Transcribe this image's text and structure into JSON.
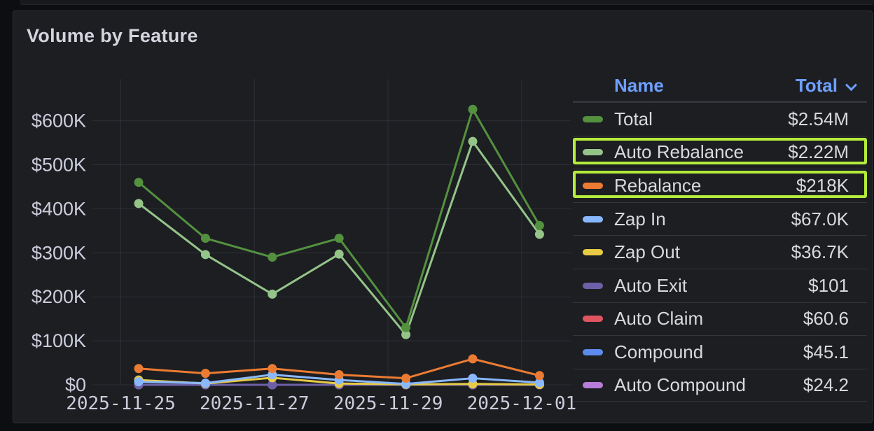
{
  "page": {
    "panel_title": "Volume by Feature"
  },
  "legend": {
    "name_header": "Name",
    "total_header": "Total"
  },
  "highlight_color": "#b5eb3b",
  "chart_data": {
    "type": "line",
    "title": "Volume by Feature",
    "x": [
      "2025-11-25",
      "2025-11-26",
      "2025-11-27",
      "2025-11-28",
      "2025-11-29",
      "2025-11-30",
      "2025-12-01"
    ],
    "x_ticks": [
      {
        "day": 0,
        "label": "2025-11-25"
      },
      {
        "day": 2,
        "label": "2025-11-27"
      },
      {
        "day": 4,
        "label": "2025-11-29"
      },
      {
        "day": 6,
        "label": "2025-12-01"
      }
    ],
    "y_ticks": [
      {
        "value": 0,
        "label": "$0"
      },
      {
        "value": 100,
        "label": "$100K"
      },
      {
        "value": 200,
        "label": "$200K"
      },
      {
        "value": 300,
        "label": "$300K"
      },
      {
        "value": 400,
        "label": "$400K"
      },
      {
        "value": 500,
        "label": "$500K"
      },
      {
        "value": 600,
        "label": "$600K"
      }
    ],
    "y_unit": "USD (thousands)",
    "ylim": [
      0,
      650
    ],
    "grid": true,
    "legend_position": "right-table",
    "markers": true,
    "series": [
      {
        "name": "Total",
        "color": "#54913f",
        "total_label": "$2.54M",
        "highlighted": false,
        "values_k": [
          460,
          333,
          290,
          333,
          130,
          626,
          362
        ]
      },
      {
        "name": "Auto Rebalance",
        "color": "#95c489",
        "total_label": "$2.22M",
        "highlighted": true,
        "values_k": [
          412,
          296,
          206,
          297,
          114,
          553,
          342
        ]
      },
      {
        "name": "Rebalance",
        "color": "#eb7b32",
        "total_label": "$218K",
        "highlighted": true,
        "values_k": [
          37,
          26,
          37,
          23,
          15,
          59,
          21
        ]
      },
      {
        "name": "Zap In",
        "color": "#8ab8ff",
        "total_label": "$67.0K",
        "highlighted": false,
        "values_k": [
          7,
          4,
          23,
          11,
          2,
          15,
          5
        ]
      },
      {
        "name": "Zap Out",
        "color": "#e8cb45",
        "total_label": "$36.7K",
        "highlighted": false,
        "values_k": [
          11,
          3,
          16,
          3,
          1,
          2,
          0.7
        ]
      },
      {
        "name": "Auto Exit",
        "color": "#6d60a8",
        "total_label": "$101",
        "highlighted": false,
        "values_k": [
          0.02,
          0.01,
          0.02,
          0.01,
          0.01,
          0.02,
          0.01
        ]
      },
      {
        "name": "Auto Claim",
        "color": "#e0545f",
        "total_label": "$60.6",
        "highlighted": false,
        "values_k": [
          0.01,
          0.01,
          0.01,
          0.01,
          0.01,
          0.01,
          0.01
        ]
      },
      {
        "name": "Compound",
        "color": "#5b8ced",
        "total_label": "$45.1",
        "highlighted": false,
        "values_k": [
          0.01,
          0.01,
          0.01,
          0.01,
          0.01,
          0.01,
          0.01
        ]
      },
      {
        "name": "Auto Compound",
        "color": "#b87cd9",
        "total_label": "$24.2",
        "highlighted": false,
        "values_k": [
          0.01,
          0.01,
          0.01,
          0.01,
          0.01,
          0.01,
          0.01
        ]
      }
    ]
  }
}
